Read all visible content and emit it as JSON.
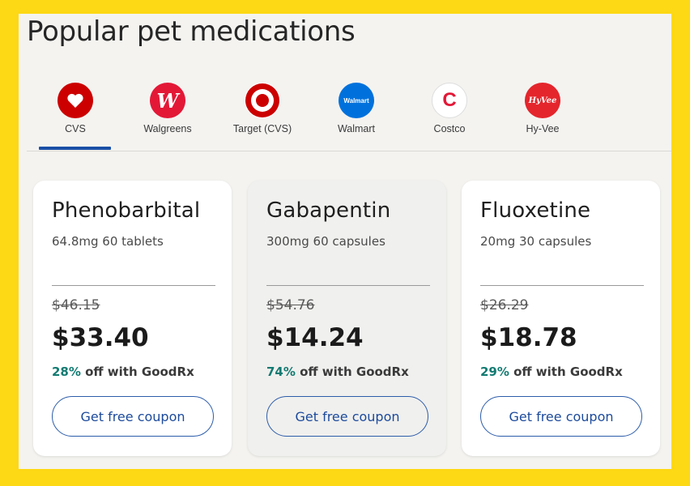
{
  "page": {
    "title": "Popular pet medications"
  },
  "pharmacies": [
    {
      "name": "CVS",
      "logo_text": "",
      "icon": "heart-icon",
      "color": "#CC0000",
      "selected": true
    },
    {
      "name": "Walgreens",
      "logo_text": "W",
      "icon": "walgreens-logo-icon",
      "color": "#E31837"
    },
    {
      "name": "Target (CVS)",
      "logo_text": "",
      "icon": "target-bullseye-icon",
      "color": "#CC0000"
    },
    {
      "name": "Walmart",
      "logo_text": "Walmart",
      "icon": "walmart-logo-icon",
      "color": "#0071DC"
    },
    {
      "name": "Costco",
      "logo_text": "C",
      "icon": "costco-logo-icon",
      "color": "#E31837"
    },
    {
      "name": "Hy-Vee",
      "logo_text": "HyVee",
      "icon": "hyvee-logo-icon",
      "color": "#E4252C"
    }
  ],
  "cards": [
    {
      "drug": "Phenobarbital",
      "desc": "64.8mg 60 tablets",
      "old_price": "$46.15",
      "price": "$33.40",
      "pct": "28%",
      "save_suffix": " off with GoodRx",
      "button": "Get free coupon"
    },
    {
      "drug": "Gabapentin",
      "desc": "300mg 60 capsules",
      "old_price": "$54.76",
      "price": "$14.24",
      "pct": "74%",
      "save_suffix": " off with GoodRx",
      "button": "Get free coupon"
    },
    {
      "drug": "Fluoxetine",
      "desc": "20mg 30 capsules",
      "old_price": "$26.29",
      "price": "$18.78",
      "pct": "29%",
      "save_suffix": " off with GoodRx",
      "button": "Get free coupon"
    }
  ],
  "colors": {
    "frame": "#FDD814",
    "accent": "#1A4FA6",
    "savings": "#127B72"
  }
}
